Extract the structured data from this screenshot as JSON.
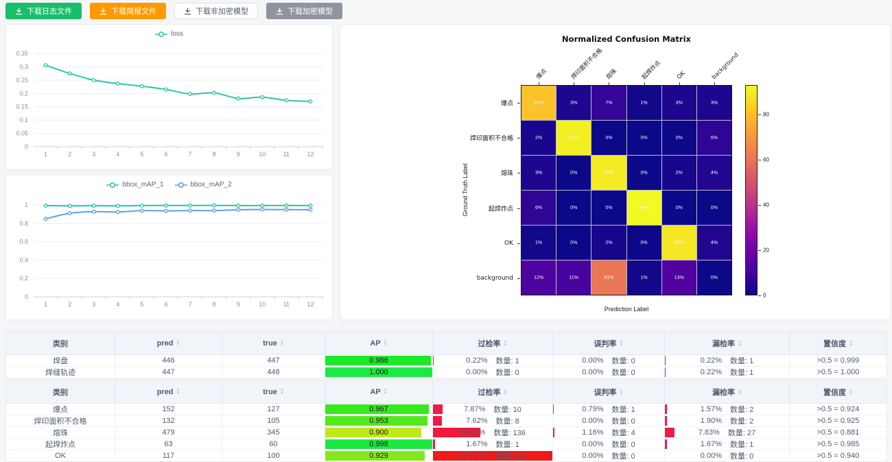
{
  "toolbar": {
    "buttons": [
      {
        "label": "下载日志文件",
        "bg": "#19be6b",
        "fg": "#ffffff",
        "border": "#19be6b"
      },
      {
        "label": "下载简报文件",
        "bg": "#ff9900",
        "fg": "#ffffff",
        "border": "#ff9900"
      },
      {
        "label": "下载非加密模型",
        "bg": "#ffffff",
        "fg": "#515a6e",
        "border": "#dcdee2"
      },
      {
        "label": "下载加密模型",
        "bg": "#8f959e",
        "fg": "#ffffff",
        "border": "#8f959e"
      }
    ]
  },
  "chart_data": [
    {
      "id": "loss-chart",
      "type": "line",
      "x": [
        1,
        2,
        3,
        4,
        5,
        6,
        7,
        8,
        9,
        10,
        11,
        12
      ],
      "series": [
        {
          "name": "loss",
          "color": "#2bc7a5",
          "values": [
            0.306,
            0.275,
            0.25,
            0.237,
            0.227,
            0.215,
            0.198,
            0.202,
            0.181,
            0.186,
            0.174,
            0.17
          ]
        }
      ],
      "ylim": [
        0,
        0.35
      ],
      "yticks": [
        0,
        0.05,
        0.1,
        0.15,
        0.2,
        0.25,
        0.3,
        0.35
      ],
      "grid": true,
      "legend_position": "top"
    },
    {
      "id": "map-chart",
      "type": "line",
      "x": [
        1,
        2,
        3,
        4,
        5,
        6,
        7,
        8,
        9,
        10,
        11,
        12
      ],
      "series": [
        {
          "name": "bbox_mAP_1",
          "color": "#2bc7a5",
          "values": [
            0.993,
            0.99,
            0.992,
            0.99,
            0.993,
            0.994,
            0.994,
            0.995,
            0.993,
            0.993,
            0.994,
            0.993
          ]
        },
        {
          "name": "bbox_mAP_2",
          "color": "#56a3e8",
          "values": [
            0.849,
            0.91,
            0.927,
            0.924,
            0.938,
            0.936,
            0.939,
            0.939,
            0.948,
            0.951,
            0.949,
            0.948
          ]
        }
      ],
      "ylim": [
        0,
        1
      ],
      "yticks": [
        0,
        0.2,
        0.4,
        0.6,
        0.8,
        1
      ],
      "grid": true,
      "legend_position": "top"
    },
    {
      "id": "confusion-matrix",
      "type": "heatmap",
      "title": "Normalized Confusion Matrix",
      "xlabel": "Prediction Label",
      "ylabel": "Ground Truth Label",
      "categories": [
        "爆点",
        "焊印面积不合格",
        "熔珠",
        "起焊炸点",
        "OK",
        "background"
      ],
      "values_pct": [
        [
          81,
          3,
          7,
          1,
          3,
          3
        ],
        [
          2,
          91,
          0,
          0,
          0,
          6
        ],
        [
          3,
          0,
          90,
          0,
          2,
          4
        ],
        [
          6,
          0,
          0,
          93,
          0,
          0
        ],
        [
          1,
          0,
          2,
          0,
          89,
          4
        ],
        [
          12,
          11,
          61,
          1,
          13,
          0
        ]
      ],
      "vmax": 93,
      "colormap": "plasma",
      "colorbar_ticks": [
        0,
        20,
        40,
        60,
        80
      ]
    }
  ],
  "tables": [
    {
      "columns": [
        {
          "label": "类别",
          "sortable": false
        },
        {
          "label": "pred",
          "sortable": true
        },
        {
          "label": "true",
          "sortable": true
        },
        {
          "label": "AP",
          "sortable": true
        },
        {
          "label": "过检率",
          "sortable": true
        },
        {
          "label": "误判率",
          "sortable": true
        },
        {
          "label": "漏检率",
          "sortable": true
        },
        {
          "label": "置信度",
          "sortable": true
        }
      ],
      "count_label": "数量",
      "rows": [
        {
          "category": "焊盘",
          "pred": 446,
          "truth": 447,
          "ap": 0.986,
          "over_rate": 0.22,
          "over_count": 1,
          "mis_rate": 0,
          "mis_count": 0,
          "miss_rate": 0.22,
          "miss_count": 1,
          "confidence": ">0.5 = 0.999"
        },
        {
          "category": "焊缝轨迹",
          "pred": 447,
          "truth": 448,
          "ap": 1.0,
          "over_rate": 0,
          "over_count": 0,
          "mis_rate": 0,
          "mis_count": 0,
          "miss_rate": 0.22,
          "miss_count": 1,
          "confidence": ">0.5 = 1.000"
        }
      ]
    },
    {
      "columns": [
        {
          "label": "类别",
          "sortable": false
        },
        {
          "label": "pred",
          "sortable": true
        },
        {
          "label": "true",
          "sortable": true
        },
        {
          "label": "AP",
          "sortable": true
        },
        {
          "label": "过检率",
          "sortable": true
        },
        {
          "label": "误判率",
          "sortable": true
        },
        {
          "label": "漏检率",
          "sortable": true
        },
        {
          "label": "置信度",
          "sortable": true
        }
      ],
      "count_label": "数量",
      "rows": [
        {
          "category": "爆点",
          "pred": 152,
          "truth": 127,
          "ap": 0.967,
          "over_rate": 7.87,
          "over_count": 10,
          "mis_rate": 0.79,
          "mis_count": 1,
          "miss_rate": 1.57,
          "miss_count": 2,
          "confidence": ">0.5 = 0.924"
        },
        {
          "category": "焊印面积不合格",
          "pred": 132,
          "truth": 105,
          "ap": 0.953,
          "over_rate": 7.62,
          "over_count": 8,
          "mis_rate": 0,
          "mis_count": 0,
          "miss_rate": 1.9,
          "miss_count": 2,
          "confidence": ">0.5 = 0.925"
        },
        {
          "category": "熔珠",
          "pred": 479,
          "truth": 345,
          "ap": 0.9,
          "over_rate": 39.42,
          "over_count": 136,
          "mis_rate": 1.16,
          "mis_count": 4,
          "miss_rate": 7.83,
          "miss_count": 27,
          "confidence": ">0.5 = 0.881"
        },
        {
          "category": "起焊炸点",
          "pred": 63,
          "truth": 60,
          "ap": 0.998,
          "over_rate": 1.67,
          "over_count": 1,
          "mis_rate": 0,
          "mis_count": 0,
          "miss_rate": 1.67,
          "miss_count": 1,
          "confidence": ">0.5 = 0.985"
        },
        {
          "category": "OK",
          "pred": 117,
          "truth": 100,
          "ap": 0.929,
          "over_rate": 117.0,
          "over_count": 117,
          "mis_rate": 0,
          "mis_count": 0,
          "miss_rate": 0,
          "miss_count": 0,
          "confidence": ">0.5 = 0.940"
        }
      ]
    }
  ]
}
